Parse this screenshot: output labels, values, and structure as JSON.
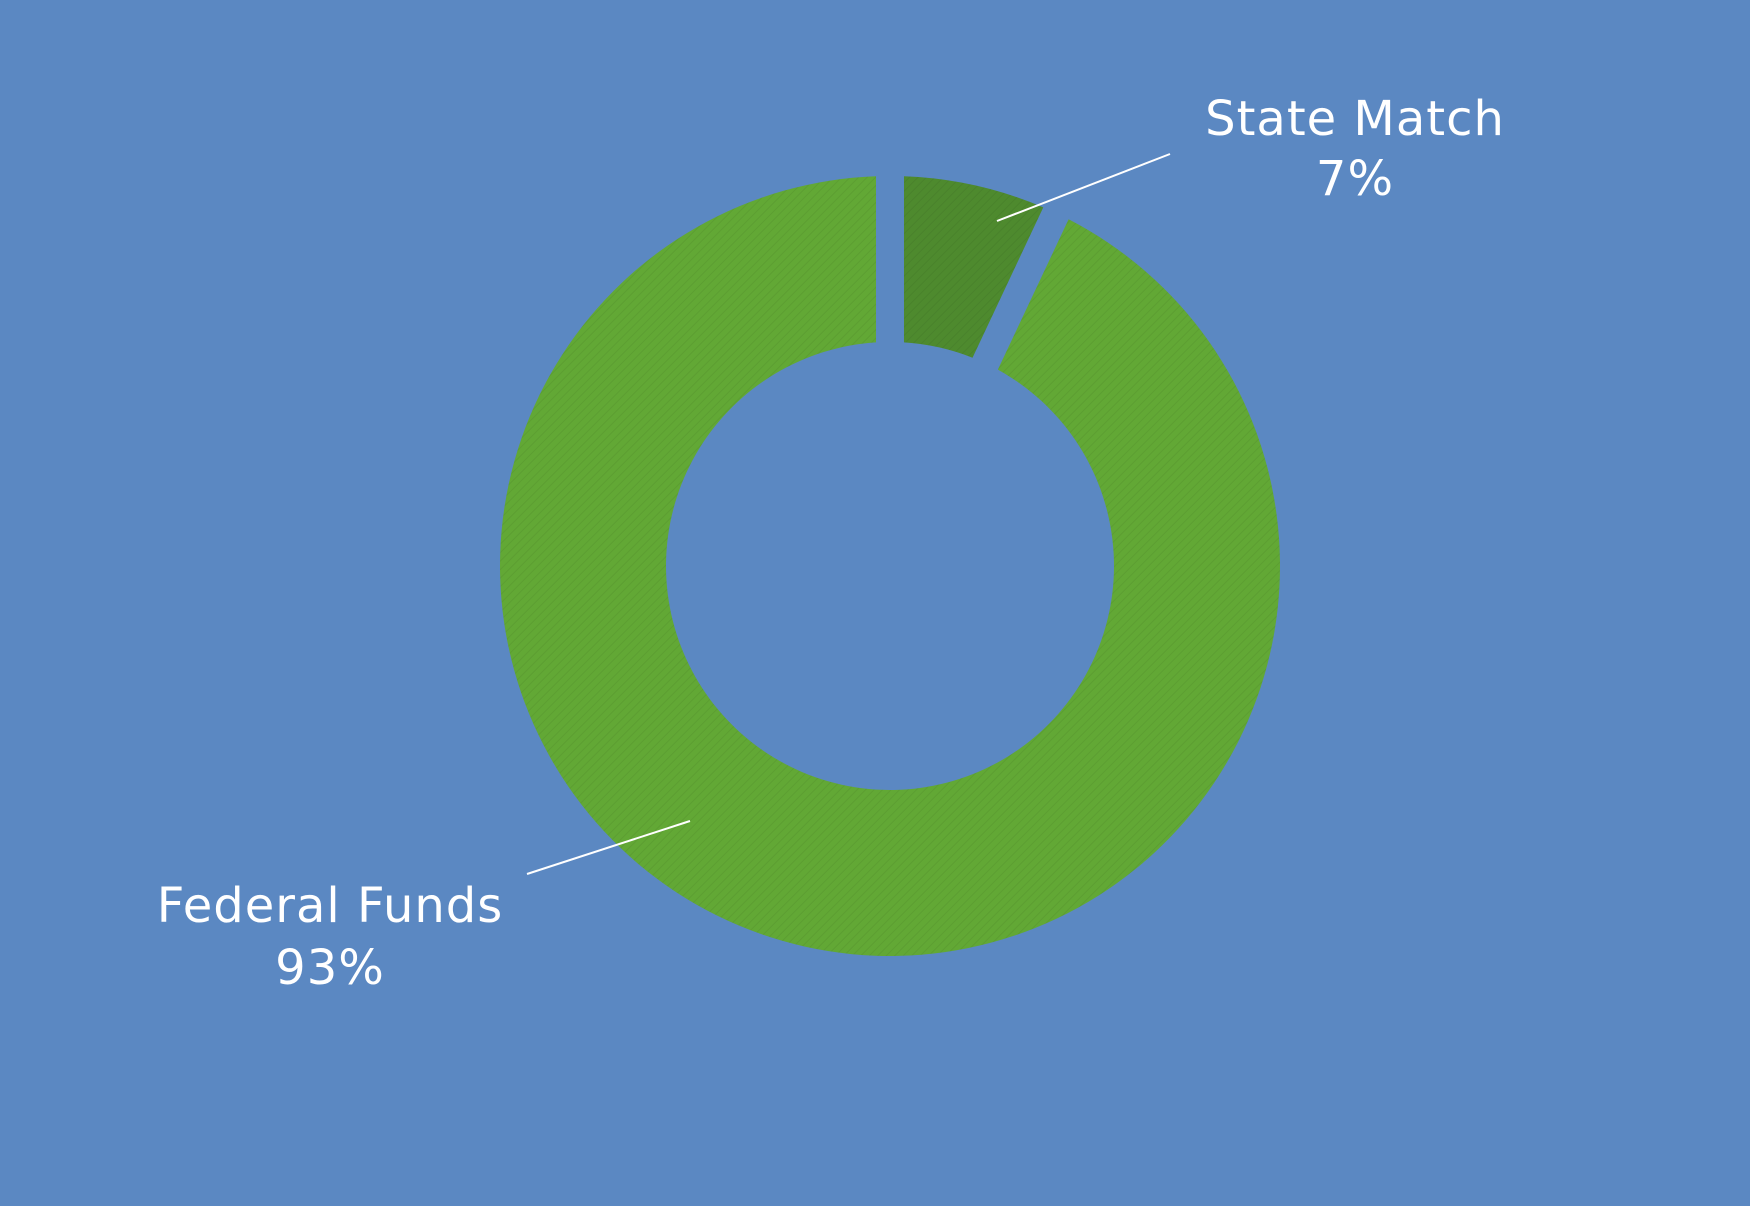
{
  "chart_data": {
    "type": "pie",
    "variant": "donut",
    "title": "",
    "background_color": "#5b88c2",
    "categories": [
      "State Match",
      "Federal Funds"
    ],
    "values": [
      7,
      93
    ],
    "percent_labels": [
      "7%",
      "93%"
    ],
    "colors": [
      "#4e8a2e",
      "#62a835"
    ],
    "leader_line_color": "#ffffff",
    "legend": "none",
    "slice_separation": "white gaps between slices"
  }
}
